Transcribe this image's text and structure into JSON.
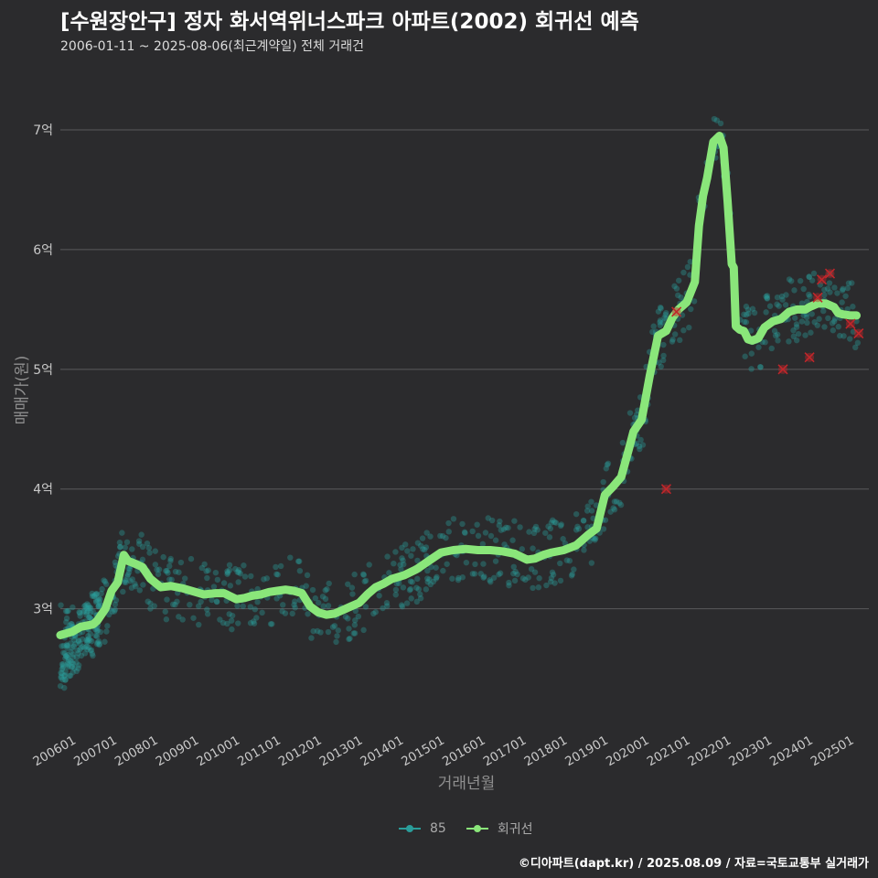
{
  "header": {
    "title": "[수원장안구] 정자 화서역위너스파크 아파트(2002) 회귀선 예측",
    "subtitle": "2006-01-11 ~ 2025-08-06(최근계약일) 전체 거래건"
  },
  "footer": {
    "credit": "©디아파트(dapt.kr) / 2025.08.09 / 자료=국토교통부 실거래가"
  },
  "colors": {
    "background": "#2b2b2d",
    "grid": "#5a5a5c",
    "scatter": "#2a9d9a",
    "regression": "#8ae67a",
    "outlier": "#c0262a"
  },
  "chart_data": {
    "type": "scatter",
    "title": "[수원장안구] 정자 화서역위너스파크 아파트(2002) 회귀선 예측",
    "xlabel": "거래년월",
    "ylabel": "매매가(원)",
    "xlim": [
      2006.0,
      2025.75
    ],
    "ylim": [
      2.05,
      7.55
    ],
    "y_ticks": [
      {
        "value": 3,
        "label": "3억"
      },
      {
        "value": 4,
        "label": "4억"
      },
      {
        "value": 5,
        "label": "5억"
      },
      {
        "value": 6,
        "label": "6억"
      },
      {
        "value": 7,
        "label": "7억"
      }
    ],
    "x_ticks": [
      {
        "value": 2006.0,
        "label": "200601"
      },
      {
        "value": 2007.0,
        "label": "200701"
      },
      {
        "value": 2008.0,
        "label": "200801"
      },
      {
        "value": 2009.0,
        "label": "200901"
      },
      {
        "value": 2010.0,
        "label": "201001"
      },
      {
        "value": 2011.0,
        "label": "201101"
      },
      {
        "value": 2012.0,
        "label": "201201"
      },
      {
        "value": 2013.0,
        "label": "201301"
      },
      {
        "value": 2014.0,
        "label": "201401"
      },
      {
        "value": 2015.0,
        "label": "201501"
      },
      {
        "value": 2016.0,
        "label": "201601"
      },
      {
        "value": 2017.0,
        "label": "201701"
      },
      {
        "value": 2018.0,
        "label": "201801"
      },
      {
        "value": 2019.0,
        "label": "201901"
      },
      {
        "value": 2020.0,
        "label": "202001"
      },
      {
        "value": 2021.0,
        "label": "202101"
      },
      {
        "value": 2022.0,
        "label": "202201"
      },
      {
        "value": 2023.0,
        "label": "202301"
      },
      {
        "value": 2024.0,
        "label": "202401"
      },
      {
        "value": 2025.0,
        "label": "202501"
      }
    ],
    "legend": [
      {
        "name": "85",
        "color": "#2a9d9a"
      },
      {
        "name": "회귀선",
        "color": "#8ae67a"
      }
    ],
    "regression": {
      "name": "회귀선",
      "x": [
        2006.0,
        2006.3,
        2006.5,
        2006.8,
        2006.9,
        2007.1,
        2007.25,
        2007.4,
        2007.55,
        2007.65,
        2007.8,
        2008.0,
        2008.2,
        2008.45,
        2008.7,
        2009.0,
        2009.3,
        2009.5,
        2009.8,
        2010.0,
        2010.3,
        2010.5,
        2010.7,
        2010.9,
        2011.1,
        2011.3,
        2011.5,
        2011.7,
        2011.9,
        2012.1,
        2012.3,
        2012.5,
        2012.7,
        2012.9,
        2013.1,
        2013.3,
        2013.5,
        2013.7,
        2013.9,
        2014.1,
        2014.4,
        2014.7,
        2015.0,
        2015.3,
        2015.6,
        2015.9,
        2016.2,
        2016.5,
        2016.8,
        2017.1,
        2017.4,
        2017.6,
        2017.8,
        2018.0,
        2018.3,
        2018.6,
        2018.9,
        2019.1,
        2019.3,
        2019.5,
        2019.7,
        2019.9,
        2020.0,
        2020.2,
        2020.4,
        2020.6,
        2020.8,
        2020.95,
        2021.1,
        2021.3,
        2021.5,
        2021.6,
        2021.7,
        2021.8,
        2021.95,
        2022.1,
        2022.2,
        2022.3,
        2022.4,
        2022.45,
        2022.5,
        2022.6,
        2022.7,
        2022.8,
        2022.9,
        2023.05,
        2023.2,
        2023.4,
        2023.6,
        2023.8,
        2024.0,
        2024.2,
        2024.3,
        2024.5,
        2024.7,
        2024.9,
        2025.0,
        2025.1,
        2025.3,
        2025.45
      ],
      "y": [
        2.78,
        2.81,
        2.85,
        2.87,
        2.9,
        3.0,
        3.15,
        3.22,
        3.45,
        3.4,
        3.38,
        3.35,
        3.25,
        3.18,
        3.19,
        3.17,
        3.14,
        3.12,
        3.13,
        3.13,
        3.08,
        3.09,
        3.11,
        3.12,
        3.14,
        3.15,
        3.16,
        3.15,
        3.13,
        3.02,
        2.97,
        2.95,
        2.96,
        2.99,
        3.02,
        3.05,
        3.12,
        3.18,
        3.21,
        3.25,
        3.28,
        3.33,
        3.4,
        3.47,
        3.49,
        3.5,
        3.49,
        3.49,
        3.48,
        3.46,
        3.41,
        3.42,
        3.45,
        3.47,
        3.49,
        3.53,
        3.62,
        3.67,
        3.95,
        4.02,
        4.1,
        4.35,
        4.48,
        4.58,
        4.95,
        5.28,
        5.32,
        5.43,
        5.5,
        5.56,
        5.73,
        6.2,
        6.45,
        6.6,
        6.9,
        6.95,
        6.85,
        6.4,
        5.88,
        5.85,
        5.36,
        5.33,
        5.32,
        5.25,
        5.24,
        5.26,
        5.35,
        5.4,
        5.42,
        5.48,
        5.5,
        5.5,
        5.52,
        5.55,
        5.55,
        5.52,
        5.47,
        5.46,
        5.45,
        5.45
      ]
    },
    "outliers": {
      "x": [
        2020.8,
        2021.05,
        2023.65,
        2024.3,
        2024.5,
        2024.6,
        2024.8,
        2025.3,
        2025.5
      ],
      "y": [
        4.0,
        5.48,
        5.0,
        5.1,
        5.6,
        5.75,
        5.8,
        5.38,
        5.3
      ]
    }
  }
}
